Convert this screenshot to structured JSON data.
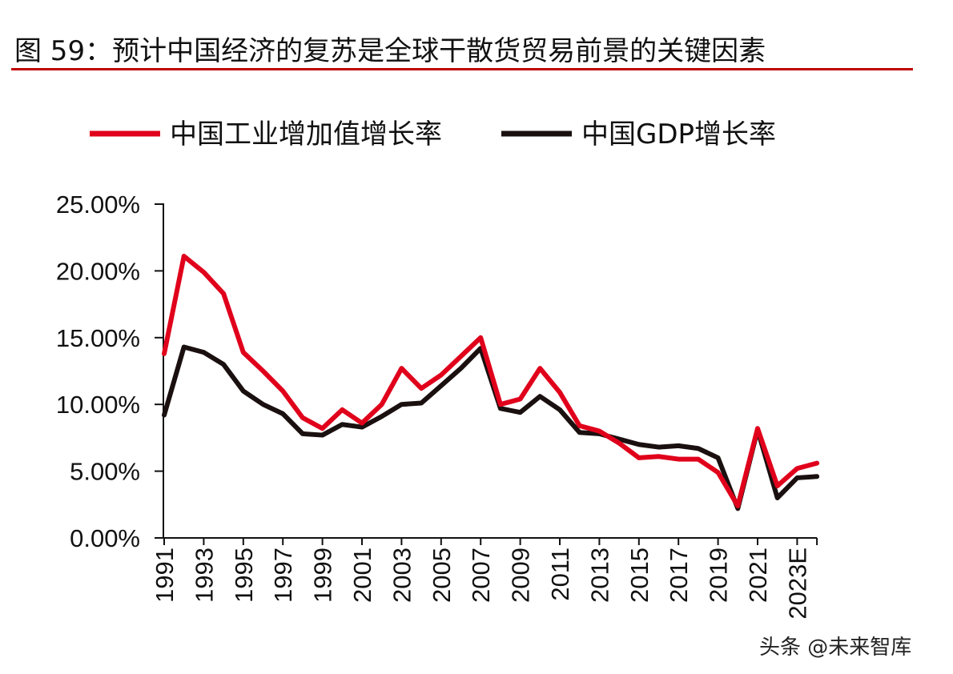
{
  "title": "图 59：预计中国经济的复苏是全球干散货贸易前景的关键因素",
  "watermark": "头条 @未来智库",
  "colors": {
    "industrial": "#e0001b",
    "gdp": "#1a1010",
    "title_rule": "#c00000"
  },
  "chart_data": {
    "type": "line",
    "legend_position": "top",
    "categories": [
      "1991",
      "1992",
      "1993",
      "1994",
      "1995",
      "1996",
      "1997",
      "1998",
      "1999",
      "2000",
      "2001",
      "2002",
      "2003",
      "2004",
      "2005",
      "2006",
      "2007",
      "2008",
      "2009",
      "2010",
      "2011",
      "2012",
      "2013",
      "2014",
      "2015",
      "2016",
      "2017",
      "2018",
      "2019",
      "2020",
      "2021",
      "2022",
      "2023E",
      "2024E"
    ],
    "tick_labels": [
      "1991",
      "1993",
      "1995",
      "1997",
      "1999",
      "2001",
      "2003",
      "2005",
      "2007",
      "2009",
      "2011",
      "2013",
      "2015",
      "2017",
      "2019",
      "2021",
      "2023E"
    ],
    "ylim": [
      0,
      25
    ],
    "y_ticks": [
      "0.00%",
      "5.00%",
      "10.00%",
      "15.00%",
      "20.00%",
      "25.00%"
    ],
    "grid": false,
    "series": [
      {
        "name": "中国工业增加值增长率",
        "values": [
          13.8,
          21.1,
          19.9,
          18.3,
          13.9,
          12.5,
          11.0,
          9.0,
          8.2,
          9.6,
          8.6,
          10.0,
          12.7,
          11.2,
          12.2,
          13.6,
          15.0,
          10.0,
          10.4,
          12.7,
          10.9,
          8.4,
          8.0,
          7.1,
          6.0,
          6.1,
          5.9,
          5.9,
          4.9,
          2.4,
          8.2,
          3.9,
          5.2,
          5.6
        ]
      },
      {
        "name": "中国GDP增长率",
        "values": [
          9.2,
          14.3,
          13.9,
          13.0,
          11.0,
          10.0,
          9.3,
          7.8,
          7.7,
          8.5,
          8.3,
          9.1,
          10.0,
          10.1,
          11.4,
          12.7,
          14.2,
          9.7,
          9.4,
          10.6,
          9.6,
          7.9,
          7.8,
          7.4,
          7.0,
          6.8,
          6.9,
          6.7,
          6.0,
          2.2,
          8.1,
          3.0,
          4.5,
          4.6
        ]
      }
    ]
  }
}
